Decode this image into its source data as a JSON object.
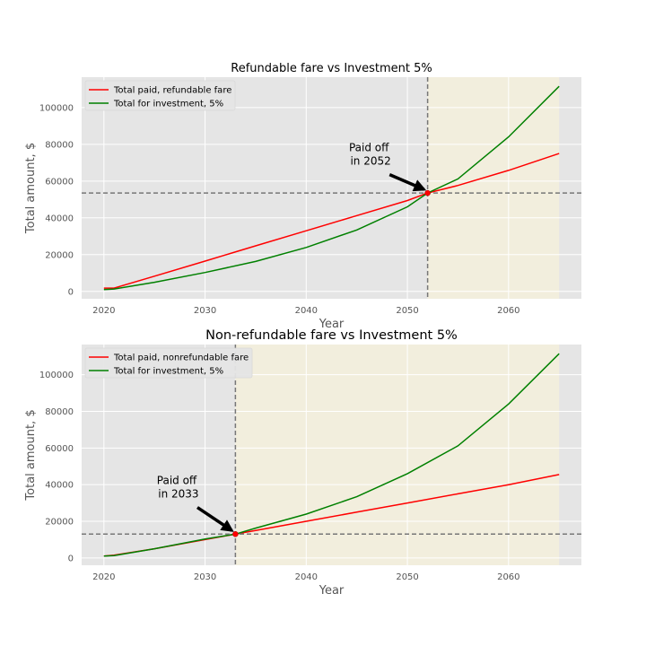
{
  "chart_data": [
    {
      "type": "line",
      "title": "Refundable fare vs Investment 5%",
      "xlabel": "Year",
      "ylabel": "Total amount, $",
      "xlim": [
        2017.8,
        2067.2
      ],
      "ylim": [
        -4000,
        116500
      ],
      "xticks": [
        2020,
        2030,
        2040,
        2050,
        2060
      ],
      "yticks": [
        0,
        20000,
        40000,
        60000,
        80000,
        100000
      ],
      "grid": true,
      "legend_position": "top-left",
      "highlight_range": [
        2052,
        2065
      ],
      "highlight_color": "#f2eedd",
      "crossover": {
        "x": 2052,
        "y": 53500
      },
      "annotation": {
        "text": "Paid off\n in 2052",
        "text_x": 2046.2,
        "text_y": 76200
      },
      "series": [
        {
          "name": "Total paid, refundable fare",
          "color": "#ff0000",
          "x": [
            2020,
            2021,
            2025,
            2030,
            2035,
            2040,
            2045,
            2050,
            2052,
            2055,
            2060,
            2065
          ],
          "y": [
            1800,
            1800,
            8300,
            16500,
            24800,
            33000,
            41200,
            49400,
            53500,
            57600,
            65800,
            75000
          ]
        },
        {
          "name": "Total for investment, 5%",
          "color": "#008000",
          "x": [
            2020,
            2021,
            2025,
            2030,
            2035,
            2040,
            2045,
            2050,
            2052,
            2055,
            2060,
            2065
          ],
          "y": [
            1000,
            1300,
            5000,
            10300,
            16300,
            23900,
            33400,
            46000,
            53500,
            61200,
            84000,
            111500
          ]
        }
      ]
    },
    {
      "type": "line",
      "title": "Non-refundable fare vs Investment 5%",
      "xlabel": "Year",
      "ylabel": "Total amount, $",
      "xlim": [
        2017.8,
        2067.2
      ],
      "ylim": [
        -4000,
        116500
      ],
      "xticks": [
        2020,
        2030,
        2040,
        2050,
        2060
      ],
      "yticks": [
        0,
        20000,
        40000,
        60000,
        80000,
        100000
      ],
      "grid": true,
      "legend_position": "top-left",
      "highlight_range": [
        2033,
        2065
      ],
      "highlight_color": "#f2eedd",
      "crossover": {
        "x": 2033,
        "y": 13000
      },
      "annotation": {
        "text": "Paid off\n in 2033",
        "text_x": 2027.2,
        "text_y": 40300
      },
      "series": [
        {
          "name": "Total paid, nonrefundable fare",
          "color": "#ff0000",
          "x": [
            2020,
            2021,
            2025,
            2030,
            2033,
            2035,
            2040,
            2045,
            2050,
            2055,
            2060,
            2065
          ],
          "y": [
            1000,
            1500,
            5000,
            10000,
            13000,
            15000,
            20000,
            25000,
            30000,
            35000,
            40000,
            45500
          ]
        },
        {
          "name": "Total for investment, 5%",
          "color": "#008000",
          "x": [
            2020,
            2021,
            2025,
            2030,
            2033,
            2035,
            2040,
            2045,
            2050,
            2055,
            2060,
            2065
          ],
          "y": [
            1000,
            1300,
            5000,
            10300,
            13000,
            16300,
            23900,
            33400,
            46000,
            61200,
            84000,
            111500
          ]
        }
      ]
    }
  ]
}
